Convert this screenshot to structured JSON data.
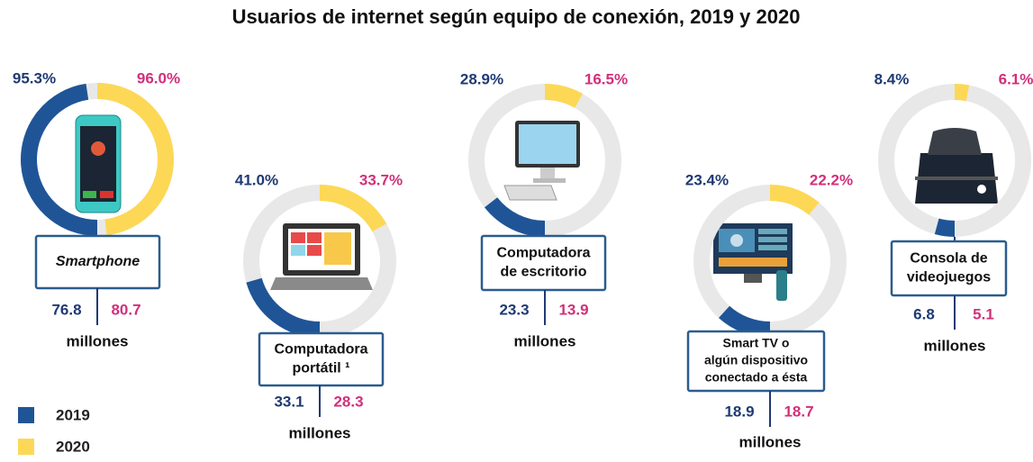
{
  "chart_data": {
    "type": "half-donut-pairs",
    "title": "Usuarios de internet según equipo de conexión, 2019 y 2020",
    "categories": [
      [
        "Smartphone"
      ],
      [
        "Computadora",
        "portátil ¹"
      ],
      [
        "Computadora",
        "de escritorio"
      ],
      [
        "Smart TV o",
        "algún dispositivo",
        "conectado a ésta"
      ],
      [
        "Consola de",
        "videojuegos"
      ]
    ],
    "units": "millones",
    "series": [
      {
        "name": "2019",
        "color": "#1f5597",
        "label_color": "#1f3a73",
        "values": [
          95.3,
          41.0,
          28.9,
          23.4,
          8.4
        ],
        "value_labels": [
          "95.3%",
          "41.0%",
          "28.9%",
          "23.4%",
          "8.4%"
        ],
        "users": [
          76.8,
          33.1,
          23.3,
          18.9,
          6.8
        ]
      },
      {
        "name": "2020",
        "color": "#fcd856",
        "label_color": "#d1307a",
        "values": [
          96.0,
          33.7,
          16.5,
          22.2,
          6.1
        ],
        "value_labels": [
          "96.0%",
          "33.7%",
          "16.5%",
          "22.2%",
          "6.1%"
        ],
        "users": [
          80.7,
          28.3,
          13.9,
          18.7,
          5.1
        ]
      }
    ]
  }
}
